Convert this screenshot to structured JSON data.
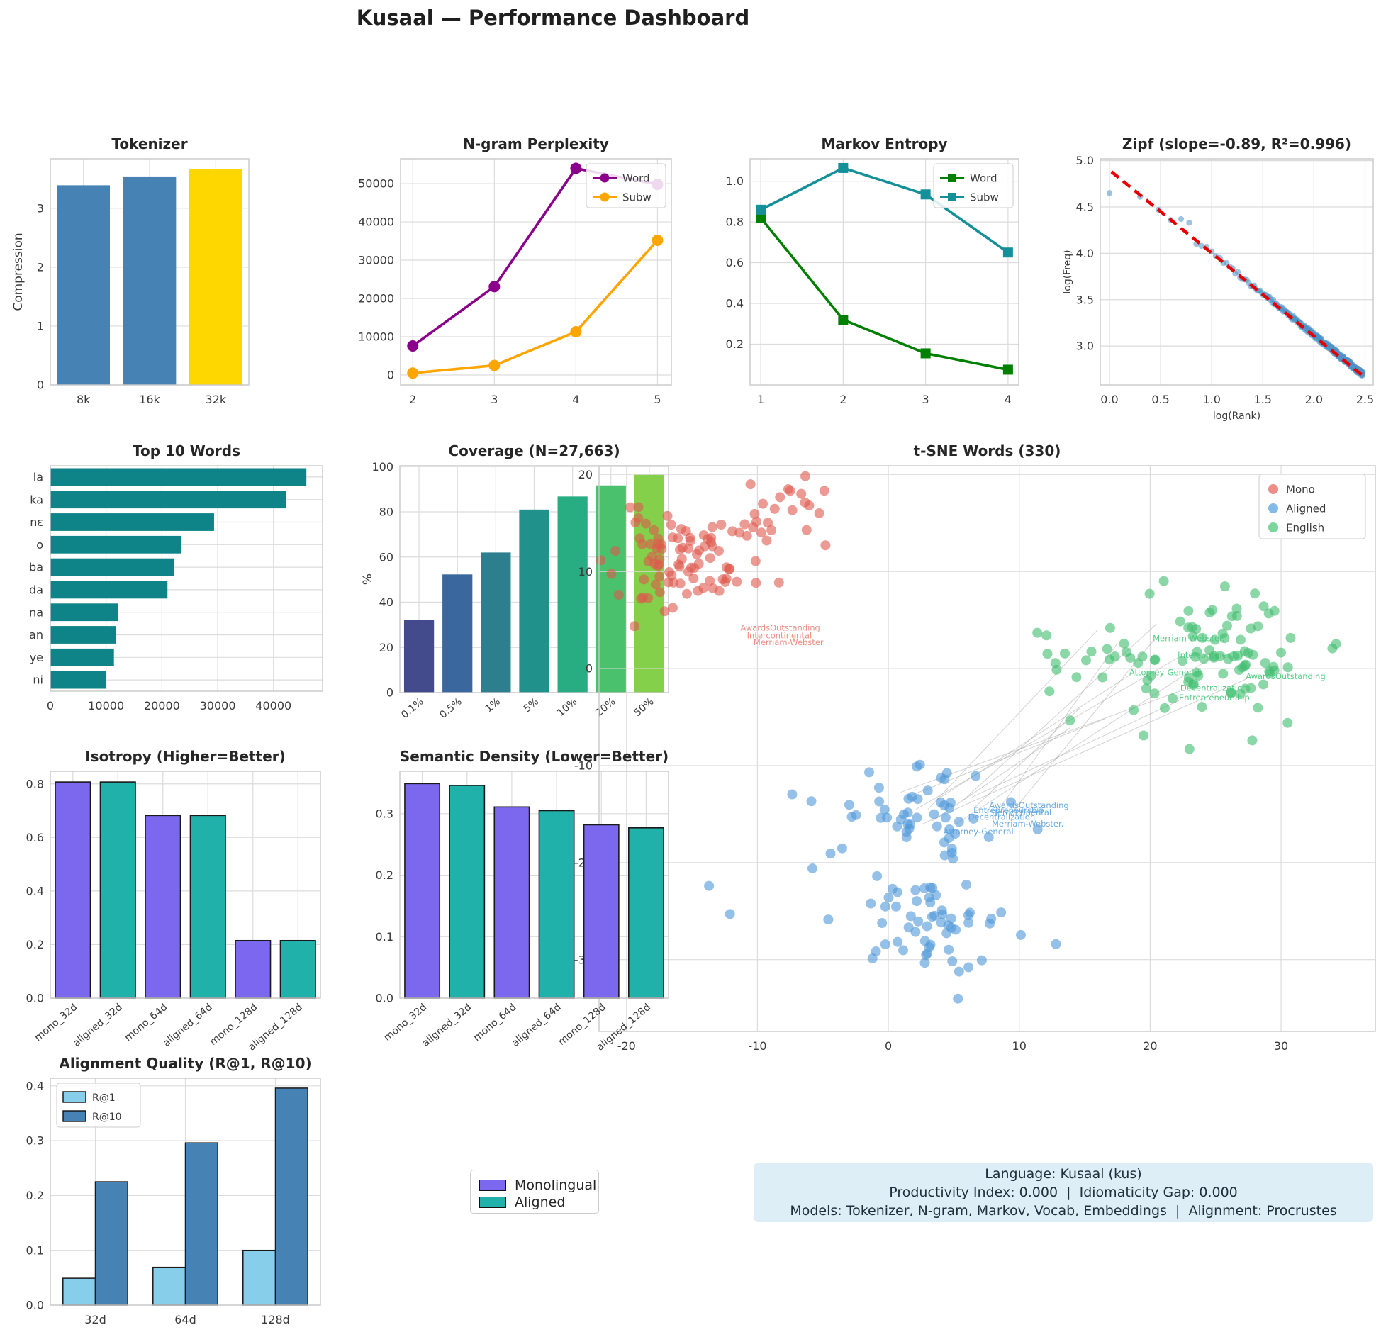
{
  "title": "Kusaal — Performance Dashboard",
  "info_box": {
    "lines": [
      "Language: Kusaal (kus)",
      "Productivity Index: 0.000  |  Idiomaticity Gap: 0.000",
      "Models: Tokenizer, N-gram, Markov, Vocab, Embeddings  |  Alignment: Procrustes"
    ]
  },
  "standalone_legend": {
    "items": [
      {
        "label": "Monolingual",
        "color": "#7b68ee"
      },
      {
        "label": "Aligned",
        "color": "#20b2aa"
      }
    ]
  },
  "chart_data": [
    {
      "id": "tokenizer",
      "type": "bar",
      "title": "Tokenizer",
      "ylabel": "Compression",
      "categories": [
        "8k",
        "16k",
        "32k"
      ],
      "values": [
        3.39,
        3.54,
        3.67
      ],
      "colors": [
        "#4682b4",
        "#4682b4",
        "#ffd700"
      ],
      "ylim": [
        0,
        3.84
      ],
      "yticks": [
        0,
        1,
        2,
        3
      ],
      "bar_width": 0.8,
      "edge": false
    },
    {
      "id": "ngram",
      "type": "line",
      "title": "N-gram Perplexity",
      "x": [
        2,
        3,
        4,
        5
      ],
      "xticks": [
        2,
        3,
        4,
        5
      ],
      "xlim": [
        1.85,
        5.17
      ],
      "ylim": [
        -2600,
        56500
      ],
      "yticks": [
        0,
        10000,
        20000,
        30000,
        40000,
        50000
      ],
      "series": [
        {
          "name": "Word",
          "color": "#8b008b",
          "marker": "circle",
          "values": [
            7600,
            23100,
            54000,
            49800
          ]
        },
        {
          "name": "Subw",
          "color": "#ffa500",
          "marker": "circle",
          "values": [
            500,
            2500,
            11300,
            35200
          ]
        }
      ],
      "legend": {
        "position": "top-right"
      }
    },
    {
      "id": "markov",
      "type": "line",
      "title": "Markov Entropy",
      "x": [
        1,
        2,
        3,
        4
      ],
      "xticks": [
        1,
        2,
        3,
        4
      ],
      "xlim": [
        0.87,
        4.13
      ],
      "ylim": [
        0.0,
        1.11
      ],
      "yticks": [
        0.2,
        0.4,
        0.6,
        0.8,
        1.0
      ],
      "series": [
        {
          "name": "Word",
          "color": "#008000",
          "marker": "square",
          "values": [
            0.82,
            0.32,
            0.155,
            0.075
          ]
        },
        {
          "name": "Subw",
          "color": "#149099",
          "marker": "square",
          "values": [
            0.86,
            1.065,
            0.935,
            0.65
          ]
        }
      ],
      "legend": {
        "position": "top-right"
      }
    },
    {
      "id": "zipf",
      "type": "zipf",
      "title": "Zipf (slope=-0.89, R²=0.996)",
      "xlabel": "log(Rank)",
      "ylabel": "log(Freq)",
      "xlim": [
        -0.09,
        2.58
      ],
      "ylim": [
        2.58,
        5.02
      ],
      "xticks": [
        0.0,
        0.5,
        1.0,
        1.5,
        2.0,
        2.5
      ],
      "yticks": [
        3.0,
        3.5,
        4.0,
        4.5,
        5.0
      ],
      "slope": -0.89,
      "intercept": 4.9,
      "r2": 0.996,
      "point_color": "#4f91c6",
      "fit_color": "#e60000",
      "head_points": [
        [
          0,
          4.65
        ],
        [
          0.3,
          4.61
        ],
        [
          0.48,
          4.47
        ],
        [
          0.6,
          4.36
        ],
        [
          0.7,
          4.37
        ],
        [
          0.78,
          4.33
        ],
        [
          0.85,
          4.1
        ],
        [
          0.9,
          4.08
        ],
        [
          0.95,
          4.07
        ],
        [
          1.0,
          4.02
        ],
        [
          1.04,
          3.97
        ],
        [
          1.08,
          3.95
        ]
      ],
      "tail": {
        "rank_start": 13,
        "rank_end": 300
      },
      "fit_line": [
        [
          0.02,
          4.88
        ],
        [
          2.5,
          2.66
        ]
      ]
    },
    {
      "id": "top_words",
      "type": "barh",
      "title": "Top 10 Words",
      "categories": [
        "la",
        "ka",
        "nɛ",
        "o",
        "ba",
        "da",
        "na",
        "an",
        "ye",
        "ni"
      ],
      "values": [
        45900,
        42300,
        29350,
        23400,
        22200,
        21000,
        12200,
        11700,
        11400,
        10000
      ],
      "color": "#0e8388",
      "xlim": [
        0,
        48800
      ],
      "xticks": [
        0,
        10000,
        20000,
        30000,
        40000
      ]
    },
    {
      "id": "coverage",
      "type": "bar",
      "title": "Coverage (N=27,663)",
      "ylabel": "%",
      "categories": [
        "0.1%",
        "0.5%",
        "1%",
        "5%",
        "10%",
        "20%",
        "50%"
      ],
      "values": [
        32,
        52.3,
        62,
        81,
        86.8,
        91.7,
        96.8
      ],
      "colors": [
        "#444b8c",
        "#3a679d",
        "#2e7f8e",
        "#21918c",
        "#27ad81",
        "#49c16d",
        "#85d04a"
      ],
      "ylim": [
        0,
        100.4
      ],
      "yticks": [
        0,
        20,
        40,
        60,
        80,
        100
      ],
      "rotate_xticks": 40,
      "bar_width": 0.78,
      "edge": false
    },
    {
      "id": "tsne",
      "type": "tsne",
      "title": "t-SNE Words (330)",
      "xlim": [
        -22.1,
        37.2
      ],
      "ylim": [
        -37.4,
        20.9
      ],
      "xticks": [
        -20,
        -10,
        0,
        10,
        20,
        30
      ],
      "yticks": [
        -30,
        -20,
        -10,
        0,
        10,
        20
      ],
      "legend": {
        "position": "top-right",
        "items": [
          {
            "label": "Mono",
            "color": "#e8685d"
          },
          {
            "label": "Aligned",
            "color": "#5ba3e0"
          },
          {
            "label": "English",
            "color": "#4fc878"
          }
        ]
      },
      "clusters": [
        {
          "name": "Mono",
          "color": "#e0584c",
          "seed": 11,
          "groups": [
            {
              "cx": -15.6,
              "cy": 11.2,
              "sx": 2.7,
              "sy": 2.4,
              "n": 88
            },
            {
              "cx": -8.3,
              "cy": 15.9,
              "sx": 1.6,
              "sy": 1.6,
              "n": 22
            }
          ],
          "extra": [
            [
              -20.6,
              7.6
            ],
            [
              -18.9,
              7.2
            ]
          ]
        },
        {
          "name": "Aligned",
          "color": "#4f97d8",
          "seed": 22,
          "groups": [
            {
              "cx": 2.0,
              "cy": -14.5,
              "sx": 3.0,
              "sy": 2.2,
              "n": 52
            },
            {
              "cx": 2.5,
              "cy": -26.0,
              "sx": 3.4,
              "sy": 2.4,
              "n": 58
            }
          ],
          "extra": [
            [
              -13.7,
              -22.4
            ],
            [
              -12.1,
              -25.3
            ],
            [
              12.8,
              -28.4
            ],
            [
              -5.8,
              -20.6
            ]
          ]
        },
        {
          "name": "English",
          "color": "#3fbd6e",
          "seed": 33,
          "groups": [
            {
              "cx": 23.3,
              "cy": 1.4,
              "sx": 5.4,
              "sy": 2.9,
              "n": 100
            }
          ],
          "extra": [
            [
              23.0,
              -8.3
            ],
            [
              19.5,
              -6.9
            ],
            [
              30.5,
              -5.6
            ],
            [
              27.8,
              -7.4
            ]
          ]
        }
      ],
      "labels": {
        "english": {
          "color": "#42c878",
          "items": [
            {
              "text": "Merriam-Webster.",
              "x": 20.2,
              "y": 2.8
            },
            {
              "text": "Intercontinental",
              "x": 22.1,
              "y": 1.1
            },
            {
              "text": "Attorney-General",
              "x": 18.4,
              "y": -0.7
            },
            {
              "text": "AwardsOutstanding",
              "x": 27.3,
              "y": -1.1
            },
            {
              "text": "Decentralization",
              "x": 22.3,
              "y": -2.3
            },
            {
              "text": "Entrepreneurship",
              "x": 22.2,
              "y": -3.3
            }
          ]
        },
        "aligned": {
          "color": "#5aa2e0",
          "items": [
            {
              "text": "AwardsOutstanding",
              "x": 7.7,
              "y": -14.4
            },
            {
              "text": "Entrepreneurship",
              "x": 6.5,
              "y": -14.9
            },
            {
              "text": "Intercontinental",
              "x": 7.5,
              "y": -15.1
            },
            {
              "text": "Decentralization",
              "x": 6.1,
              "y": -15.6
            },
            {
              "text": "Merriam-Webster.",
              "x": 7.9,
              "y": -16.3
            },
            {
              "text": "Attorney-General",
              "x": 4.2,
              "y": -17.1
            }
          ]
        },
        "mono": {
          "color": "#ec8177",
          "items": [
            {
              "text": "AwardsOutstanding",
              "x": -11.3,
              "y": 3.9
            },
            {
              "text": "Intercontinental",
              "x": -10.8,
              "y": 3.1
            },
            {
              "text": "Merriam-Webster.",
              "x": -10.3,
              "y": 2.4
            }
          ]
        }
      },
      "connectors": {
        "color": "#9a9a9a",
        "opacity": 0.45,
        "seed": 7,
        "from": {
          "cx": 4.0,
          "cy": -14.6,
          "sx": 2.0,
          "sy": 1.2
        },
        "ends": [
          [
            20.2,
            2.8
          ],
          [
            22.1,
            1.1
          ],
          [
            18.4,
            -0.7
          ],
          [
            27.3,
            -1.1
          ],
          [
            22.3,
            -2.3
          ],
          [
            22.2,
            -3.3
          ],
          [
            16.0,
            4.0
          ],
          [
            17.5,
            2.6
          ],
          [
            20.5,
            4.6
          ],
          [
            25.2,
            1.6
          ],
          [
            14.6,
            -4.1
          ],
          [
            16.5,
            -5.2
          ],
          [
            13.9,
            -6.1
          ]
        ]
      }
    },
    {
      "id": "isotropy",
      "type": "bar",
      "title": "Isotropy (Higher=Better)",
      "categories": [
        "mono_32d",
        "aligned_32d",
        "mono_64d",
        "aligned_64d",
        "mono_128d",
        "aligned_128d"
      ],
      "values": [
        0.807,
        0.807,
        0.682,
        0.682,
        0.215,
        0.215
      ],
      "colors": [
        "#7b68ee",
        "#20b2aa",
        "#7b68ee",
        "#20b2aa",
        "#7b68ee",
        "#20b2aa"
      ],
      "ylim": [
        0,
        0.847
      ],
      "yticks": [
        0.0,
        0.2,
        0.4,
        0.6,
        0.8
      ],
      "rotate_xticks": 40,
      "bar_width": 0.78,
      "edge": true
    },
    {
      "id": "density",
      "type": "bar",
      "title": "Semantic Density (Lower=Better)",
      "categories": [
        "mono_32d",
        "aligned_32d",
        "mono_64d",
        "aligned_64d",
        "mono_128d",
        "aligned_128d"
      ],
      "values": [
        0.349,
        0.346,
        0.311,
        0.305,
        0.282,
        0.277
      ],
      "colors": [
        "#7b68ee",
        "#20b2aa",
        "#7b68ee",
        "#20b2aa",
        "#7b68ee",
        "#20b2aa"
      ],
      "ylim": [
        0,
        0.369
      ],
      "yticks": [
        0.0,
        0.1,
        0.2,
        0.3
      ],
      "rotate_xticks": 40,
      "bar_width": 0.78,
      "edge": true
    },
    {
      "id": "alignment",
      "type": "grouped_bar",
      "title": "Alignment Quality (R@1, R@10)",
      "categories": [
        "32d",
        "64d",
        "128d"
      ],
      "series": [
        {
          "name": "R@1",
          "color": "#87ceeb",
          "values": [
            0.049,
            0.069,
            0.1
          ]
        },
        {
          "name": "R@10",
          "color": "#4682b4",
          "values": [
            0.225,
            0.296,
            0.396
          ]
        }
      ],
      "ylim": [
        0,
        0.414
      ],
      "yticks": [
        0.0,
        0.1,
        0.2,
        0.3,
        0.4
      ],
      "legend": {
        "position": "top-left"
      },
      "edge": true
    }
  ]
}
